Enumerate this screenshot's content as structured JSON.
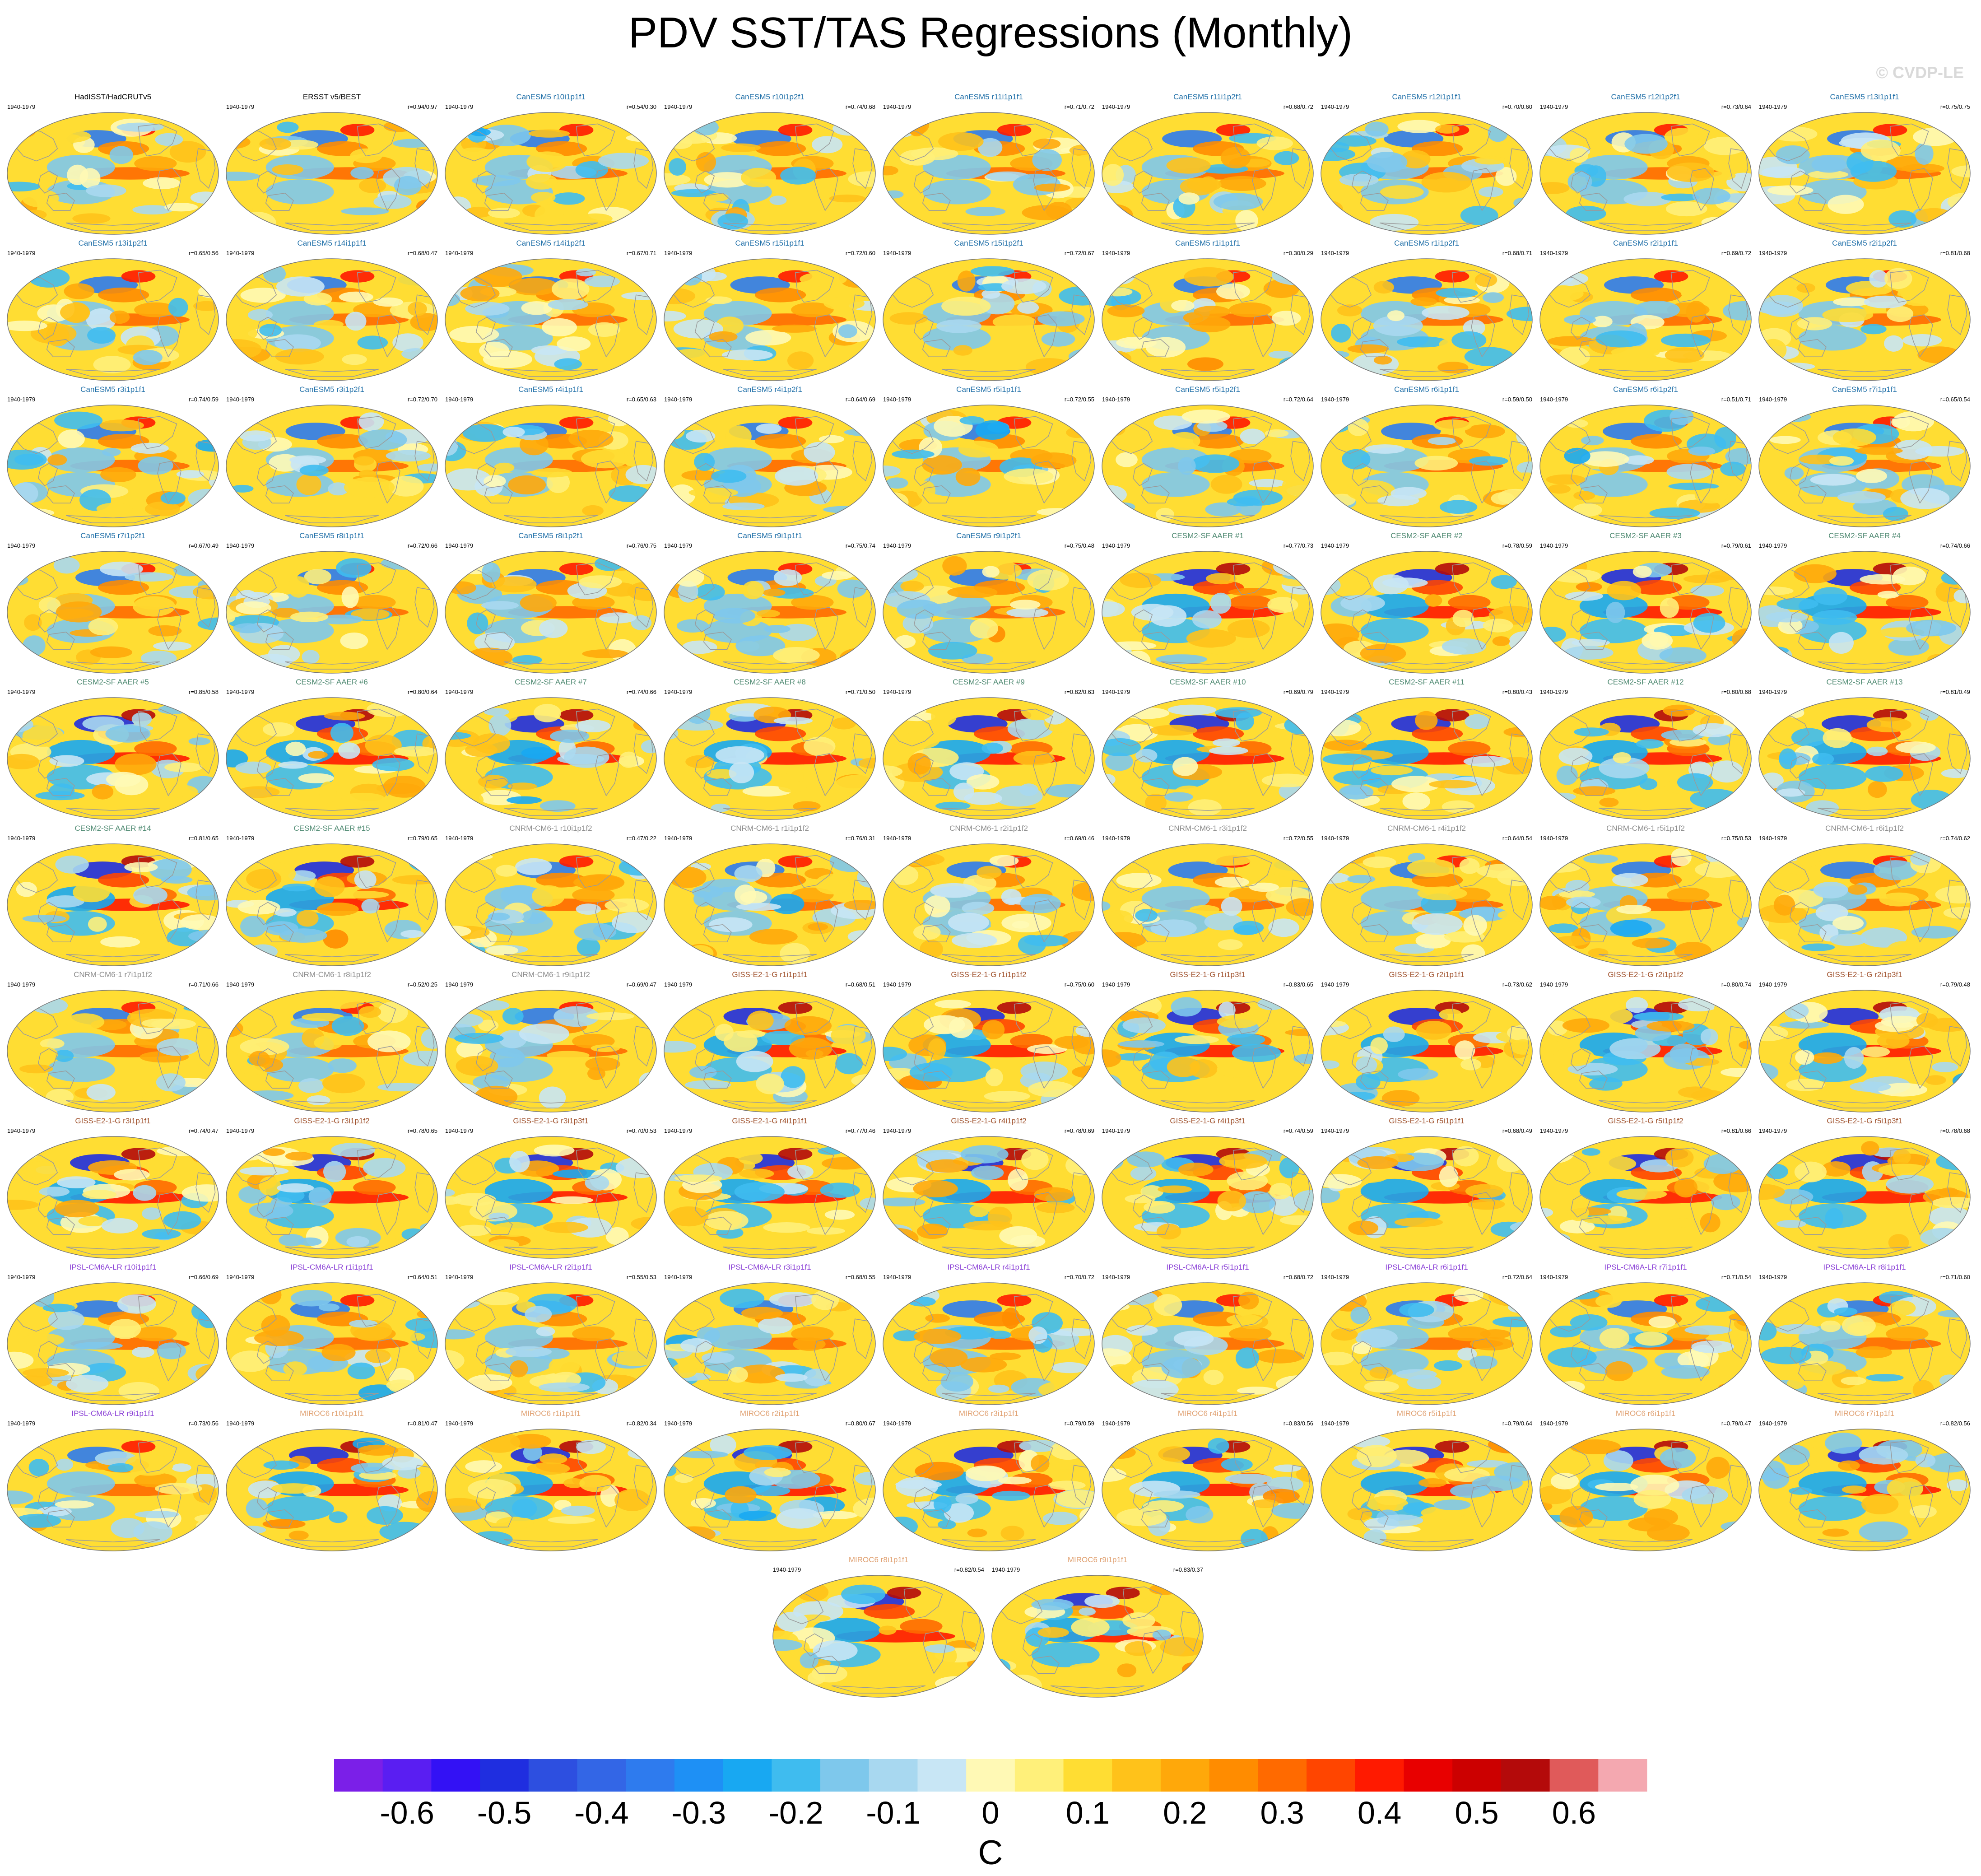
{
  "title": "PDV SST/TAS Regressions (Monthly)",
  "watermark": "© CVDP-LE",
  "group_colors": {
    "obs": "#000000",
    "CanESM5": "#1f6fa8",
    "CESM2-SF AAER": "#4f8a72",
    "CNRM-CM6-1": "#8c8c8c",
    "GISS-E2-1-G": "#a0522d",
    "IPSL-CM6A-LR": "#8a3fd6",
    "MIROC6": "#e0a070"
  },
  "period": "1940-1979",
  "panels": [
    {
      "title": "HadISST/HadCRUTv5",
      "group": "obs",
      "r": ""
    },
    {
      "title": "ERSST v5/BEST",
      "group": "obs",
      "r": "r=0.94/0.97"
    },
    {
      "title": "CanESM5 r10i1p1f1",
      "group": "CanESM5",
      "r": "r=0.54/0.30"
    },
    {
      "title": "CanESM5 r10i1p2f1",
      "group": "CanESM5",
      "r": "r=0.74/0.68"
    },
    {
      "title": "CanESM5 r11i1p1f1",
      "group": "CanESM5",
      "r": "r=0.71/0.72"
    },
    {
      "title": "CanESM5 r11i1p2f1",
      "group": "CanESM5",
      "r": "r=0.68/0.72"
    },
    {
      "title": "CanESM5 r12i1p1f1",
      "group": "CanESM5",
      "r": "r=0.70/0.60"
    },
    {
      "title": "CanESM5 r12i1p2f1",
      "group": "CanESM5",
      "r": "r=0.73/0.64"
    },
    {
      "title": "CanESM5 r13i1p1f1",
      "group": "CanESM5",
      "r": "r=0.75/0.75"
    },
    {
      "title": "CanESM5 r13i1p2f1",
      "group": "CanESM5",
      "r": "r=0.65/0.56"
    },
    {
      "title": "CanESM5 r14i1p1f1",
      "group": "CanESM5",
      "r": "r=0.68/0.47"
    },
    {
      "title": "CanESM5 r14i1p2f1",
      "group": "CanESM5",
      "r": "r=0.67/0.71"
    },
    {
      "title": "CanESM5 r15i1p1f1",
      "group": "CanESM5",
      "r": "r=0.72/0.60"
    },
    {
      "title": "CanESM5 r15i1p2f1",
      "group": "CanESM5",
      "r": "r=0.72/0.67"
    },
    {
      "title": "CanESM5 r1i1p1f1",
      "group": "CanESM5",
      "r": "r=0.30/0.29"
    },
    {
      "title": "CanESM5 r1i1p2f1",
      "group": "CanESM5",
      "r": "r=0.68/0.71"
    },
    {
      "title": "CanESM5 r2i1p1f1",
      "group": "CanESM5",
      "r": "r=0.69/0.72"
    },
    {
      "title": "CanESM5 r2i1p2f1",
      "group": "CanESM5",
      "r": "r=0.81/0.68"
    },
    {
      "title": "CanESM5 r3i1p1f1",
      "group": "CanESM5",
      "r": "r=0.74/0.59"
    },
    {
      "title": "CanESM5 r3i1p2f1",
      "group": "CanESM5",
      "r": "r=0.72/0.70"
    },
    {
      "title": "CanESM5 r4i1p1f1",
      "group": "CanESM5",
      "r": "r=0.65/0.63"
    },
    {
      "title": "CanESM5 r4i1p2f1",
      "group": "CanESM5",
      "r": "r=0.64/0.69"
    },
    {
      "title": "CanESM5 r5i1p1f1",
      "group": "CanESM5",
      "r": "r=0.72/0.55"
    },
    {
      "title": "CanESM5 r5i1p2f1",
      "group": "CanESM5",
      "r": "r=0.72/0.64"
    },
    {
      "title": "CanESM5 r6i1p1f1",
      "group": "CanESM5",
      "r": "r=0.59/0.50"
    },
    {
      "title": "CanESM5 r6i1p2f1",
      "group": "CanESM5",
      "r": "r=0.51/0.71"
    },
    {
      "title": "CanESM5 r7i1p1f1",
      "group": "CanESM5",
      "r": "r=0.65/0.54"
    },
    {
      "title": "CanESM5 r7i1p2f1",
      "group": "CanESM5",
      "r": "r=0.67/0.49"
    },
    {
      "title": "CanESM5 r8i1p1f1",
      "group": "CanESM5",
      "r": "r=0.72/0.66"
    },
    {
      "title": "CanESM5 r8i1p2f1",
      "group": "CanESM5",
      "r": "r=0.76/0.75"
    },
    {
      "title": "CanESM5 r9i1p1f1",
      "group": "CanESM5",
      "r": "r=0.75/0.74"
    },
    {
      "title": "CanESM5 r9i1p2f1",
      "group": "CanESM5",
      "r": "r=0.75/0.48"
    },
    {
      "title": "CESM2-SF AAER #1",
      "group": "CESM2-SF AAER",
      "r": "r=0.77/0.73"
    },
    {
      "title": "CESM2-SF AAER #2",
      "group": "CESM2-SF AAER",
      "r": "r=0.78/0.59"
    },
    {
      "title": "CESM2-SF AAER #3",
      "group": "CESM2-SF AAER",
      "r": "r=0.79/0.61"
    },
    {
      "title": "CESM2-SF AAER #4",
      "group": "CESM2-SF AAER",
      "r": "r=0.74/0.66"
    },
    {
      "title": "CESM2-SF AAER #5",
      "group": "CESM2-SF AAER",
      "r": "r=0.85/0.58"
    },
    {
      "title": "CESM2-SF AAER #6",
      "group": "CESM2-SF AAER",
      "r": "r=0.80/0.64"
    },
    {
      "title": "CESM2-SF AAER #7",
      "group": "CESM2-SF AAER",
      "r": "r=0.74/0.66"
    },
    {
      "title": "CESM2-SF AAER #8",
      "group": "CESM2-SF AAER",
      "r": "r=0.71/0.50"
    },
    {
      "title": "CESM2-SF AAER #9",
      "group": "CESM2-SF AAER",
      "r": "r=0.82/0.63"
    },
    {
      "title": "CESM2-SF AAER #10",
      "group": "CESM2-SF AAER",
      "r": "r=0.69/0.79"
    },
    {
      "title": "CESM2-SF AAER #11",
      "group": "CESM2-SF AAER",
      "r": "r=0.80/0.43"
    },
    {
      "title": "CESM2-SF AAER #12",
      "group": "CESM2-SF AAER",
      "r": "r=0.80/0.68"
    },
    {
      "title": "CESM2-SF AAER #13",
      "group": "CESM2-SF AAER",
      "r": "r=0.81/0.49"
    },
    {
      "title": "CESM2-SF AAER #14",
      "group": "CESM2-SF AAER",
      "r": "r=0.81/0.65"
    },
    {
      "title": "CESM2-SF AAER #15",
      "group": "CESM2-SF AAER",
      "r": "r=0.79/0.65"
    },
    {
      "title": "CNRM-CM6-1 r10i1p1f2",
      "group": "CNRM-CM6-1",
      "r": "r=0.47/0.22"
    },
    {
      "title": "CNRM-CM6-1 r1i1p1f2",
      "group": "CNRM-CM6-1",
      "r": "r=0.76/0.31"
    },
    {
      "title": "CNRM-CM6-1 r2i1p1f2",
      "group": "CNRM-CM6-1",
      "r": "r=0.69/0.46"
    },
    {
      "title": "CNRM-CM6-1 r3i1p1f2",
      "group": "CNRM-CM6-1",
      "r": "r=0.72/0.55"
    },
    {
      "title": "CNRM-CM6-1 r4i1p1f2",
      "group": "CNRM-CM6-1",
      "r": "r=0.64/0.54"
    },
    {
      "title": "CNRM-CM6-1 r5i1p1f2",
      "group": "CNRM-CM6-1",
      "r": "r=0.75/0.53"
    },
    {
      "title": "CNRM-CM6-1 r6i1p1f2",
      "group": "CNRM-CM6-1",
      "r": "r=0.74/0.62"
    },
    {
      "title": "CNRM-CM6-1 r7i1p1f2",
      "group": "CNRM-CM6-1",
      "r": "r=0.71/0.66"
    },
    {
      "title": "CNRM-CM6-1 r8i1p1f2",
      "group": "CNRM-CM6-1",
      "r": "r=0.52/0.25"
    },
    {
      "title": "CNRM-CM6-1 r9i1p1f2",
      "group": "CNRM-CM6-1",
      "r": "r=0.69/0.47"
    },
    {
      "title": "GISS-E2-1-G r1i1p1f1",
      "group": "GISS-E2-1-G",
      "r": "r=0.68/0.51"
    },
    {
      "title": "GISS-E2-1-G r1i1p1f2",
      "group": "GISS-E2-1-G",
      "r": "r=0.75/0.60"
    },
    {
      "title": "GISS-E2-1-G r1i1p3f1",
      "group": "GISS-E2-1-G",
      "r": "r=0.83/0.65"
    },
    {
      "title": "GISS-E2-1-G r2i1p1f1",
      "group": "GISS-E2-1-G",
      "r": "r=0.73/0.62"
    },
    {
      "title": "GISS-E2-1-G r2i1p1f2",
      "group": "GISS-E2-1-G",
      "r": "r=0.80/0.74"
    },
    {
      "title": "GISS-E2-1-G r2i1p3f1",
      "group": "GISS-E2-1-G",
      "r": "r=0.79/0.48"
    },
    {
      "title": "GISS-E2-1-G r3i1p1f1",
      "group": "GISS-E2-1-G",
      "r": "r=0.74/0.47"
    },
    {
      "title": "GISS-E2-1-G r3i1p1f2",
      "group": "GISS-E2-1-G",
      "r": "r=0.78/0.65"
    },
    {
      "title": "GISS-E2-1-G r3i1p3f1",
      "group": "GISS-E2-1-G",
      "r": "r=0.70/0.53"
    },
    {
      "title": "GISS-E2-1-G r4i1p1f1",
      "group": "GISS-E2-1-G",
      "r": "r=0.77/0.46"
    },
    {
      "title": "GISS-E2-1-G r4i1p1f2",
      "group": "GISS-E2-1-G",
      "r": "r=0.78/0.69"
    },
    {
      "title": "GISS-E2-1-G r4i1p3f1",
      "group": "GISS-E2-1-G",
      "r": "r=0.74/0.59"
    },
    {
      "title": "GISS-E2-1-G r5i1p1f1",
      "group": "GISS-E2-1-G",
      "r": "r=0.68/0.49"
    },
    {
      "title": "GISS-E2-1-G r5i1p1f2",
      "group": "GISS-E2-1-G",
      "r": "r=0.81/0.66"
    },
    {
      "title": "GISS-E2-1-G r5i1p3f1",
      "group": "GISS-E2-1-G",
      "r": "r=0.78/0.68"
    },
    {
      "title": "IPSL-CM6A-LR r10i1p1f1",
      "group": "IPSL-CM6A-LR",
      "r": "r=0.66/0.69"
    },
    {
      "title": "IPSL-CM6A-LR r1i1p1f1",
      "group": "IPSL-CM6A-LR",
      "r": "r=0.64/0.51"
    },
    {
      "title": "IPSL-CM6A-LR r2i1p1f1",
      "group": "IPSL-CM6A-LR",
      "r": "r=0.55/0.53"
    },
    {
      "title": "IPSL-CM6A-LR r3i1p1f1",
      "group": "IPSL-CM6A-LR",
      "r": "r=0.68/0.55"
    },
    {
      "title": "IPSL-CM6A-LR r4i1p1f1",
      "group": "IPSL-CM6A-LR",
      "r": "r=0.70/0.72"
    },
    {
      "title": "IPSL-CM6A-LR r5i1p1f1",
      "group": "IPSL-CM6A-LR",
      "r": "r=0.68/0.72"
    },
    {
      "title": "IPSL-CM6A-LR r6i1p1f1",
      "group": "IPSL-CM6A-LR",
      "r": "r=0.72/0.64"
    },
    {
      "title": "IPSL-CM6A-LR r7i1p1f1",
      "group": "IPSL-CM6A-LR",
      "r": "r=0.71/0.54"
    },
    {
      "title": "IPSL-CM6A-LR r8i1p1f1",
      "group": "IPSL-CM6A-LR",
      "r": "r=0.71/0.60"
    },
    {
      "title": "IPSL-CM6A-LR r9i1p1f1",
      "group": "IPSL-CM6A-LR",
      "r": "r=0.73/0.56"
    },
    {
      "title": "MIROC6 r10i1p1f1",
      "group": "MIROC6",
      "r": "r=0.81/0.47"
    },
    {
      "title": "MIROC6 r1i1p1f1",
      "group": "MIROC6",
      "r": "r=0.82/0.34"
    },
    {
      "title": "MIROC6 r2i1p1f1",
      "group": "MIROC6",
      "r": "r=0.80/0.67"
    },
    {
      "title": "MIROC6 r3i1p1f1",
      "group": "MIROC6",
      "r": "r=0.79/0.59"
    },
    {
      "title": "MIROC6 r4i1p1f1",
      "group": "MIROC6",
      "r": "r=0.83/0.56"
    },
    {
      "title": "MIROC6 r5i1p1f1",
      "group": "MIROC6",
      "r": "r=0.79/0.64"
    },
    {
      "title": "MIROC6 r6i1p1f1",
      "group": "MIROC6",
      "r": "r=0.79/0.47"
    },
    {
      "title": "MIROC6 r7i1p1f1",
      "group": "MIROC6",
      "r": "r=0.82/0.56"
    },
    {
      "title": "MIROC6 r8i1p1f1",
      "group": "MIROC6",
      "r": "r=0.82/0.54"
    },
    {
      "title": "MIROC6 r9i1p1f1",
      "group": "MIROC6",
      "r": "r=0.83/0.37"
    }
  ],
  "colorbar": {
    "units": "C",
    "labels": [
      "-0.6",
      "-0.5",
      "-0.4",
      "-0.3",
      "-0.2",
      "-0.1",
      "0",
      "0.1",
      "0.2",
      "0.3",
      "0.4",
      "0.5",
      "0.6"
    ],
    "colors": [
      "#7b1fe8",
      "#5a1ef2",
      "#3311f5",
      "#1f2ee0",
      "#2d4fe0",
      "#3366e6",
      "#2e7bee",
      "#1e90f5",
      "#18a8f2",
      "#3fbcef",
      "#7ec8ec",
      "#a8d8f0",
      "#c8e6f5",
      "#fff9b5",
      "#fff07a",
      "#ffdd33",
      "#ffc21a",
      "#ffa80a",
      "#ff8c00",
      "#ff6a00",
      "#ff4500",
      "#ff1a00",
      "#e80000",
      "#cc0000",
      "#b40a0a",
      "#e05a5a",
      "#f4a8b0"
    ]
  },
  "chart_data": {
    "type": "heatmap",
    "title": "PDV SST/TAS Regressions (Monthly)",
    "units": "C",
    "period": "1940-1979",
    "n_panels": 92,
    "color_scale_range": [
      -0.65,
      0.65
    ],
    "color_levels": [
      -0.6,
      -0.55,
      -0.5,
      -0.45,
      -0.4,
      -0.35,
      -0.3,
      -0.25,
      -0.2,
      -0.15,
      -0.1,
      -0.05,
      0,
      0.05,
      0.1,
      0.15,
      0.2,
      0.25,
      0.3,
      0.35,
      0.4,
      0.45,
      0.5,
      0.55,
      0.6
    ],
    "pattern_correlations_note": "r values listed per panel (pattern correlation vs HadISST/HadCRUTv5 and vs ERSST v5/BEST)",
    "series": [
      {
        "name": "HadISST/HadCRUTv5",
        "r": null
      },
      {
        "name": "ERSST v5/BEST",
        "r": [
          0.94,
          0.97
        ]
      }
    ]
  }
}
